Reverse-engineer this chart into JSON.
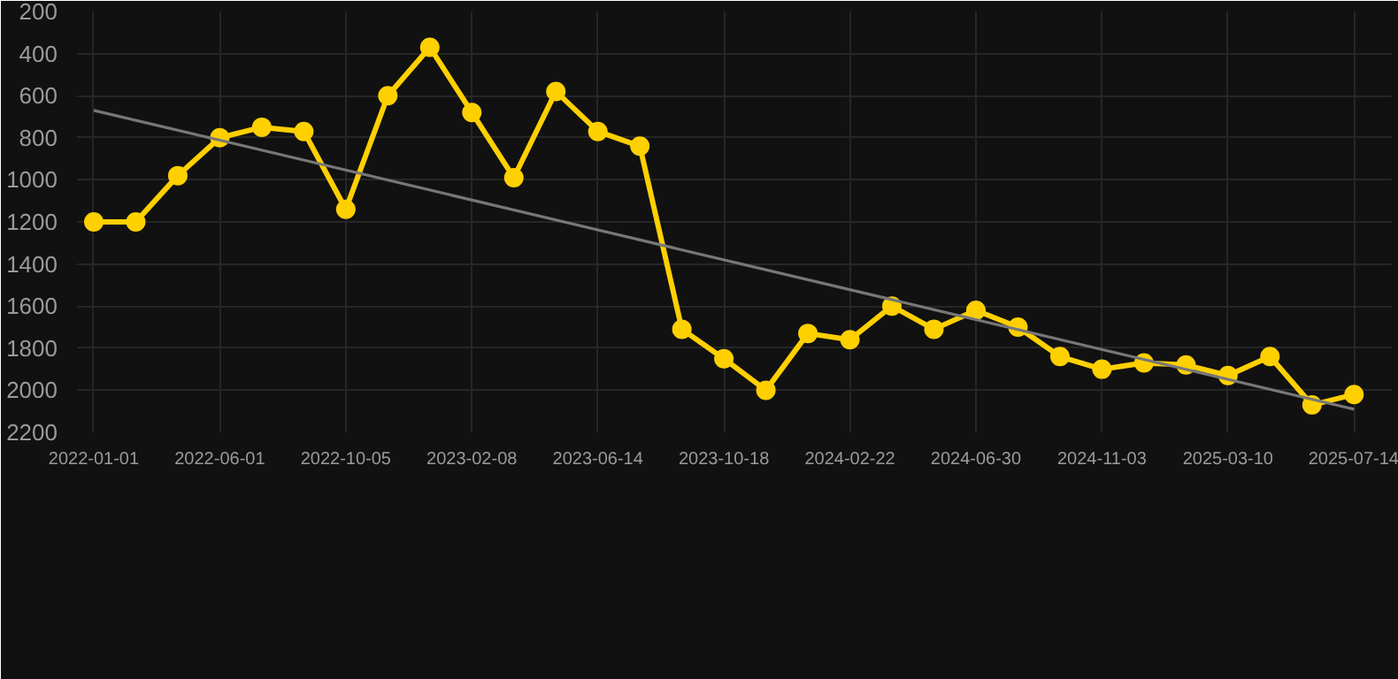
{
  "chart_data": {
    "type": "line",
    "categories": [
      "2022-01-01",
      null,
      null,
      "2022-06-01",
      null,
      null,
      "2022-10-05",
      null,
      null,
      "2023-02-08",
      null,
      null,
      "2023-06-14",
      null,
      null,
      "2023-10-18",
      null,
      null,
      "2024-02-22",
      null,
      null,
      "2024-06-30",
      null,
      null,
      "2024-11-03",
      null,
      null,
      "2025-03-10",
      null,
      null,
      "2025-07-14"
    ],
    "ylim": [
      2200,
      200
    ],
    "yticks": [
      200,
      400,
      600,
      800,
      1000,
      1200,
      1400,
      1600,
      1800,
      2000,
      2200
    ],
    "grid": true,
    "marker": "circle",
    "line_style": "solid",
    "series": [
      {
        "color": "#ffd000",
        "values": [
          1200,
          1200,
          980,
          800,
          750,
          770,
          1140,
          600,
          370,
          680,
          990,
          580,
          770,
          840,
          1710,
          1850,
          2000,
          1730,
          1760,
          1600,
          1710,
          1620,
          1700,
          1840,
          1900,
          1870,
          1880,
          1930,
          1840,
          2070,
          2020
        ]
      },
      {
        "type": "line",
        "marker": "none",
        "color": "#777777",
        "values": [
          670,
          null,
          null,
          null,
          null,
          null,
          null,
          null,
          null,
          null,
          null,
          null,
          null,
          null,
          null,
          null,
          null,
          null,
          null,
          null,
          null,
          null,
          null,
          null,
          null,
          null,
          null,
          null,
          null,
          null,
          2090
        ]
      }
    ]
  }
}
